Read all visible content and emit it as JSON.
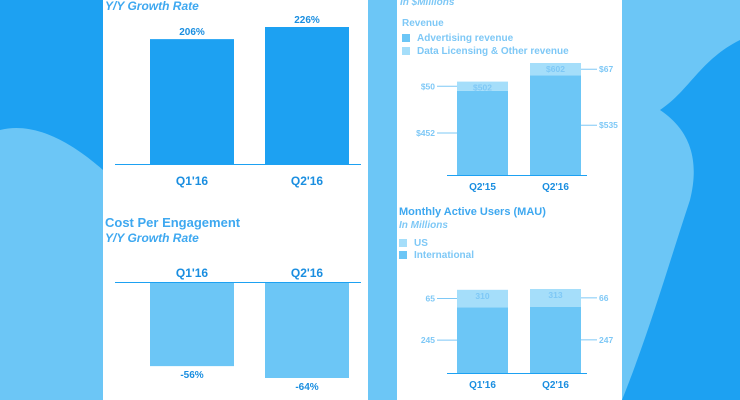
{
  "colors": {
    "background": "#1da1f2",
    "background_shape": "#6cc6f6",
    "bar_dark": "#1da1f2",
    "bar_light": "#6cc6f6",
    "bar_pale": "#a5defa",
    "axis": "#1da1f2",
    "text_dark": "#1a8ee0",
    "text_light": "#7ec8f6"
  },
  "left_top": {
    "subtitle": "Y/Y Growth Rate",
    "chart_data": {
      "type": "bar",
      "categories": [
        "Q1'16",
        "Q2'16"
      ],
      "values": [
        206,
        226
      ],
      "value_labels": [
        "206%",
        "226%"
      ],
      "ylim": [
        0,
        226
      ]
    }
  },
  "left_bottom": {
    "title": "Cost Per Engagement",
    "subtitle": "Y/Y Growth Rate",
    "chart_data": {
      "type": "bar",
      "categories": [
        "Q1'16",
        "Q2'16"
      ],
      "values": [
        -56,
        -64
      ],
      "value_labels": [
        "-56%",
        "-64%"
      ],
      "ylim": [
        -64,
        0
      ]
    }
  },
  "right_top": {
    "subtitle": "In $Millions",
    "legend_title": "Revenue",
    "chart_data": {
      "type": "bar",
      "stacked": true,
      "categories": [
        "Q2'15",
        "Q2'16"
      ],
      "series": [
        {
          "name": "Advertising revenue",
          "values": [
            452,
            535
          ],
          "labels": [
            "$452",
            "$535"
          ]
        },
        {
          "name": "Data Licensing & Other revenue",
          "values": [
            50,
            67
          ],
          "labels": [
            "$50",
            "$67"
          ]
        }
      ],
      "totals": [
        502,
        602
      ],
      "total_labels": [
        "$502",
        "$602"
      ],
      "ylim": [
        0,
        602
      ]
    }
  },
  "right_bottom": {
    "title": "Monthly Active Users (MAU)",
    "subtitle": "In Millions",
    "chart_data": {
      "type": "bar",
      "stacked": true,
      "categories": [
        "Q1'16",
        "Q2'16"
      ],
      "series": [
        {
          "name": "International",
          "values": [
            245,
            247
          ],
          "labels": [
            "245",
            "247"
          ]
        },
        {
          "name": "US",
          "values": [
            65,
            66
          ],
          "labels": [
            "65",
            "66"
          ]
        }
      ],
      "totals": [
        310,
        313
      ],
      "total_labels": [
        "310",
        "313"
      ],
      "ylim": [
        0,
        313
      ]
    }
  }
}
